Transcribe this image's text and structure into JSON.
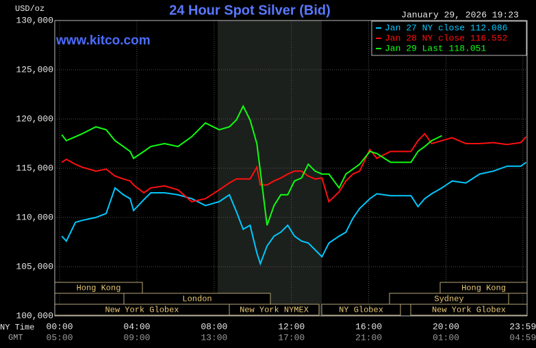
{
  "chart_data": {
    "type": "line",
    "title": "24 Hour Spot Silver (Bid)",
    "subtitle": "www.kitco.com",
    "timestamp": "January 29, 2026 19:23",
    "y_label": "USD/oz",
    "x_row_label": "NY Time",
    "x2_row_label": "GMT",
    "x": [
      0.11,
      0.35,
      0.82,
      1.17,
      1.88,
      2.41,
      2.87,
      3.3,
      3.65,
      3.83,
      4.36,
      4.72,
      5.43,
      6.13,
      6.84,
      7.55,
      8.26,
      8.79,
      9.15,
      9.5,
      9.86,
      10.21,
      10.39,
      10.74,
      11.1,
      11.45,
      11.81,
      12.16,
      12.52,
      12.87,
      13.23,
      13.58,
      13.94,
      14.47,
      14.82,
      15.18,
      15.53,
      16.06,
      16.42,
      17.13,
      18.19,
      18.55,
      18.9,
      19.26,
      19.79,
      20.32,
      21.03,
      21.74,
      22.45,
      23.16,
      23.87,
      24.15
    ],
    "series": [
      {
        "name": "Jan 27 NY close 112.086",
        "color": "#00c8ff",
        "values": [
          108.1,
          107.6,
          109.5,
          109.7,
          110.0,
          110.4,
          113.0,
          112.3,
          111.9,
          110.7,
          111.8,
          112.5,
          112.5,
          112.3,
          111.9,
          111.2,
          111.6,
          112.3,
          110.6,
          108.8,
          109.2,
          106.4,
          105.3,
          107.1,
          108.1,
          108.5,
          109.2,
          108.1,
          107.6,
          107.4,
          106.7,
          106.0,
          107.4,
          108.1,
          108.5,
          109.9,
          110.9,
          111.9,
          112.4,
          112.2,
          112.2,
          111.1,
          111.9,
          112.4,
          113.0,
          113.7,
          113.5,
          114.4,
          114.7,
          115.2,
          115.2,
          115.6
        ]
      },
      {
        "name": "Jan 28 NY close 116.552",
        "color": "#ff1010",
        "values": [
          115.6,
          115.9,
          115.4,
          115.1,
          114.7,
          114.9,
          114.2,
          113.9,
          113.7,
          113.3,
          112.5,
          113.0,
          113.2,
          112.8,
          111.6,
          111.9,
          112.8,
          113.5,
          113.9,
          113.9,
          113.9,
          115.1,
          113.3,
          113.3,
          113.7,
          114.0,
          114.4,
          114.7,
          114.7,
          114.2,
          113.9,
          114.0,
          111.6,
          112.6,
          113.7,
          114.4,
          114.7,
          116.9,
          116.0,
          116.7,
          116.7,
          117.8,
          118.5,
          117.5,
          117.8,
          118.1,
          117.5,
          117.5,
          117.6,
          117.4,
          117.6,
          118.2
        ]
      },
      {
        "name": "Jan 29 Last 118.051",
        "color": "#10ff10",
        "values": [
          118.4,
          117.8,
          118.2,
          118.5,
          119.2,
          118.9,
          117.8,
          117.2,
          116.7,
          116.0,
          116.7,
          117.2,
          117.5,
          117.2,
          118.2,
          119.6,
          118.9,
          119.2,
          119.9,
          121.3,
          119.9,
          117.5,
          114.7,
          109.2,
          111.2,
          112.3,
          112.3,
          113.7,
          114.0,
          115.4,
          114.7,
          114.4,
          114.4,
          113.0,
          114.4,
          114.9,
          115.4,
          116.7,
          116.5,
          115.6,
          115.6,
          116.7,
          117.2,
          117.8,
          118.3,
          null,
          null,
          null,
          null,
          null,
          null,
          null
        ]
      }
    ],
    "xlim": [
      -0.25,
      24.2
    ],
    "xticks": [
      {
        "value": 0,
        "label": "00:00"
      },
      {
        "value": 4,
        "label": "04:00"
      },
      {
        "value": 8,
        "label": "08:00"
      },
      {
        "value": 12,
        "label": "12:00"
      },
      {
        "value": 16,
        "label": "16:00"
      },
      {
        "value": 20,
        "label": "20:00"
      },
      {
        "value": 23.98,
        "label": "23:59"
      }
    ],
    "x2_labels": [
      "05:00",
      "09:00",
      "13:00",
      "17:00",
      "21:00",
      "01:00",
      "04:59"
    ],
    "ylim": [
      100,
      130
    ],
    "yticks": [
      {
        "value": 100,
        "label": "100,000"
      },
      {
        "value": 105,
        "label": "105,000"
      },
      {
        "value": 110,
        "label": "110,000"
      },
      {
        "value": 115,
        "label": "115,000"
      },
      {
        "value": 120,
        "label": "120,000"
      },
      {
        "value": 125,
        "label": "125,000"
      },
      {
        "value": 130,
        "label": "130,000"
      }
    ],
    "grid": true,
    "legend": "top-right",
    "sessions": [
      "Hong Kong",
      "Hong Kong",
      "London",
      "Sydney",
      "New York Globex",
      "New York NYMEX",
      "NY Globex",
      "New York Globex"
    ]
  }
}
